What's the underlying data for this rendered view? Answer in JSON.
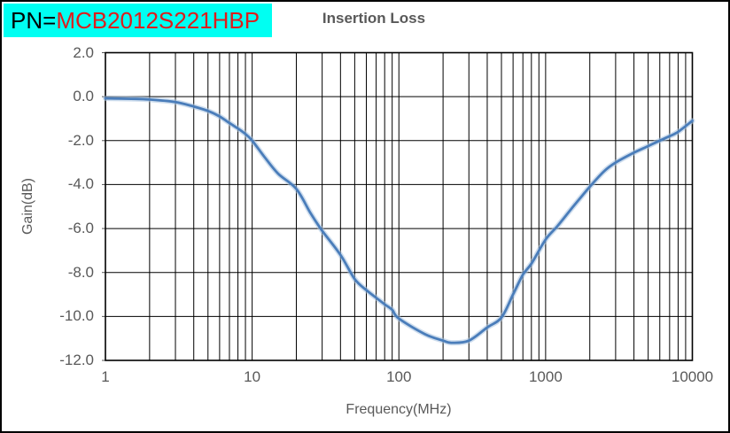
{
  "window": {
    "background": "#ffffff",
    "border_color": "#000000"
  },
  "header": {
    "pn_prefix": "PN=",
    "pn_value": "MCB2012S221HBP",
    "pn_prefix_color": "#000000",
    "pn_value_color": "#e01b1b",
    "pn_background": "#00fff2",
    "title": "Insertion Loss",
    "title_color": "#595959"
  },
  "chart_data": {
    "type": "line",
    "title": "Insertion Loss",
    "xlabel": "Frequency(MHz)",
    "ylabel": "Gain(dB)",
    "x_scale": "log",
    "xlim": [
      1,
      10000
    ],
    "ylim": [
      -12,
      2
    ],
    "x_ticks": [
      1,
      10,
      100,
      1000,
      10000
    ],
    "x_tick_labels": [
      "1",
      "10",
      "100",
      "1000",
      "10000"
    ],
    "y_ticks": [
      2,
      0,
      -2,
      -4,
      -6,
      -8,
      -10,
      -12
    ],
    "y_tick_labels": [
      "2.0",
      "0.0",
      "-2.0",
      "-4.0",
      "-6.0",
      "-8.0",
      "-10.0",
      "-12.0"
    ],
    "grid": "major horizontal every 2 dB; major + minor (2-9 per decade) vertical, black",
    "grid_color": "#000000",
    "legend": "none",
    "series": [
      {
        "name": "Insertion Loss",
        "color": "#4a7dba",
        "halo_color": "#a8c2e0",
        "x": [
          1,
          1.5,
          2,
          3,
          4,
          5,
          6,
          7,
          8,
          9,
          10,
          12,
          15,
          20,
          25,
          30,
          40,
          50,
          60,
          70,
          80,
          90,
          100,
          150,
          200,
          230,
          300,
          400,
          500,
          600,
          700,
          800,
          1000,
          1200,
          1500,
          2000,
          2500,
          3000,
          4000,
          5000,
          6000,
          7000,
          8000,
          10000
        ],
        "y": [
          -0.08,
          -0.1,
          -0.13,
          -0.25,
          -0.45,
          -0.65,
          -0.9,
          -1.2,
          -1.45,
          -1.7,
          -2.0,
          -2.7,
          -3.5,
          -4.2,
          -5.3,
          -6.1,
          -7.2,
          -8.3,
          -8.8,
          -9.15,
          -9.45,
          -9.7,
          -10.1,
          -10.8,
          -11.1,
          -11.2,
          -11.1,
          -10.5,
          -10.05,
          -9.0,
          -8.1,
          -7.6,
          -6.5,
          -5.9,
          -5.1,
          -4.1,
          -3.4,
          -3.0,
          -2.55,
          -2.25,
          -2.0,
          -1.8,
          -1.6,
          -1.1
        ]
      }
    ]
  }
}
